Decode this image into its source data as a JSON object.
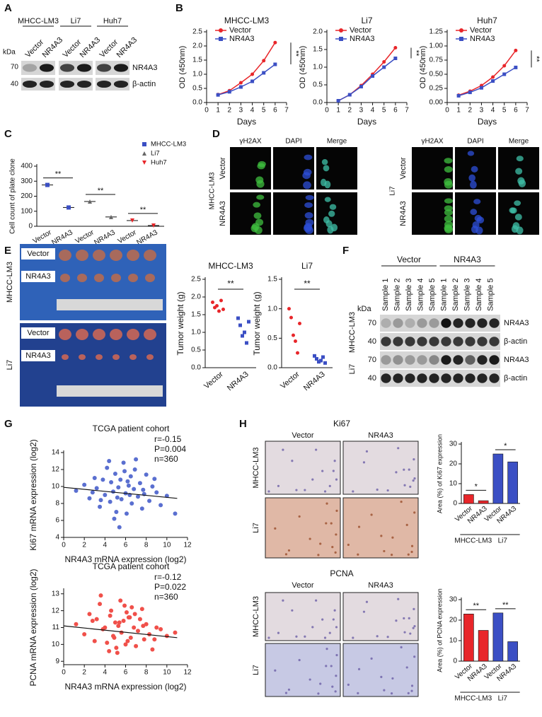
{
  "A": {
    "label": "A",
    "cell_lines": [
      "MHCC-LM3",
      "Li7",
      "Huh7"
    ],
    "lanes": [
      "Vector",
      "NR4A3"
    ],
    "unit": "kDa",
    "markers": [
      70,
      40
    ],
    "proteins": [
      "NR4A3",
      "β-actin"
    ]
  },
  "B": {
    "label": "B",
    "charts": [
      {
        "type": "line",
        "title": "MHCC-LM3",
        "x": [
          1,
          2,
          3,
          4,
          5,
          6
        ],
        "xlim": [
          0,
          7
        ],
        "xticks": [
          0,
          1,
          2,
          3,
          4,
          5,
          6,
          7
        ],
        "ylim": [
          0,
          2.5
        ],
        "yticks": [
          {
            "value": 0,
            "label": "0.0"
          },
          {
            "value": 0.5,
            "label": "0.5"
          },
          {
            "value": 1,
            "label": "1.0"
          },
          {
            "value": 1.5,
            "label": "1.5"
          },
          {
            "value": 2,
            "label": "2.0"
          },
          {
            "value": 2.5,
            "label": "2.5"
          }
        ],
        "xlabel": "Days",
        "ylabel": "OD (450nm)",
        "significance": "**",
        "series": [
          {
            "name": "Vector",
            "color": "#e8262a",
            "marker": "circle",
            "values": [
              0.28,
              0.42,
              0.7,
              1.0,
              1.48,
              2.12
            ]
          },
          {
            "name": "NR4A3",
            "color": "#3b4fc4",
            "marker": "square",
            "values": [
              0.27,
              0.38,
              0.55,
              0.75,
              1.05,
              1.35
            ]
          }
        ]
      },
      {
        "type": "line",
        "title": "Li7",
        "x": [
          1,
          2,
          3,
          4,
          5,
          6
        ],
        "xlim": [
          0,
          7
        ],
        "xticks": [
          0,
          1,
          2,
          3,
          4,
          5,
          6,
          7
        ],
        "ylim": [
          0,
          2
        ],
        "yticks": [
          {
            "value": 0,
            "label": "0.0"
          },
          {
            "value": 0.5,
            "label": "0.5"
          },
          {
            "value": 1,
            "label": "1.0"
          },
          {
            "value": 1.5,
            "label": "1.5"
          },
          {
            "value": 2,
            "label": "2.0"
          }
        ],
        "xlabel": "Days",
        "ylabel": "OD (450nm)",
        "significance": "**",
        "series": [
          {
            "name": "Vector",
            "color": "#e8262a",
            "marker": "circle",
            "values": [
              0.05,
              0.22,
              0.48,
              0.8,
              1.15,
              1.55
            ]
          },
          {
            "name": "NR4A3",
            "color": "#3b4fc4",
            "marker": "square",
            "values": [
              0.05,
              0.22,
              0.45,
              0.75,
              1.0,
              1.25
            ]
          }
        ]
      },
      {
        "type": "line",
        "title": "Huh7",
        "x": [
          1,
          2,
          3,
          4,
          5,
          6
        ],
        "xlim": [
          0,
          7
        ],
        "xticks": [
          0,
          1,
          2,
          3,
          4,
          5,
          6,
          7
        ],
        "ylim": [
          0,
          1.25
        ],
        "yticks": [
          {
            "value": 0,
            "label": "0.00"
          },
          {
            "value": 0.25,
            "label": "0.25"
          },
          {
            "value": 0.5,
            "label": "0.50"
          },
          {
            "value": 0.75,
            "label": "0.75"
          },
          {
            "value": 1,
            "label": "1.00"
          },
          {
            "value": 1.25,
            "label": "1.25"
          }
        ],
        "xlabel": "Days",
        "ylabel": "OD (450nm)",
        "significance": "**",
        "series": [
          {
            "name": "Vector",
            "color": "#e8262a",
            "marker": "circle",
            "values": [
              0.13,
              0.2,
              0.3,
              0.45,
              0.65,
              0.92
            ]
          },
          {
            "name": "NR4A3",
            "color": "#3b4fc4",
            "marker": "square",
            "values": [
              0.12,
              0.18,
              0.26,
              0.38,
              0.5,
              0.62
            ]
          }
        ]
      }
    ]
  },
  "C": {
    "label": "C",
    "type": "dot",
    "ylabel": "Cell count of plate clone",
    "ylim": [
      0,
      400
    ],
    "yticks": [
      0,
      100,
      200,
      300,
      400
    ],
    "categories": [
      "Vector",
      "NR4A3"
    ],
    "series": [
      {
        "name": "MHCC-LM3",
        "color": "#3b4fc4",
        "marker": "square",
        "values": [
          275,
          125
        ],
        "significance": "**"
      },
      {
        "name": "Li7",
        "color": "#666666",
        "marker": "triangle",
        "values": [
          165,
          62
        ],
        "significance": "**"
      },
      {
        "name": "Huh7",
        "color": "#e8262a",
        "marker": "triangle-down",
        "values": [
          38,
          5
        ],
        "significance": "**"
      }
    ]
  },
  "D": {
    "label": "D",
    "channels": [
      "γH2AX",
      "DAPI",
      "Merge"
    ],
    "channel_colors": [
      "#2ca02c",
      "#2a3fbf",
      "#2a3fbf"
    ],
    "rows": [
      "Vector",
      "NR4A3"
    ],
    "cell_lines": [
      "MHCC-LM3",
      "Li7"
    ]
  },
  "E": {
    "label": "E",
    "cell_lines": [
      "MHCC-LM3",
      "Li7"
    ],
    "groups": [
      "Vector",
      "NR4A3"
    ],
    "charts": [
      {
        "type": "dot",
        "title": "MHCC-LM3",
        "ylabel": "Tumor weight (g)",
        "ylim": [
          0,
          2.5
        ],
        "yticks": [
          {
            "value": 0,
            "label": "0.0"
          },
          {
            "value": 0.5,
            "label": "0.5"
          },
          {
            "value": 1,
            "label": "1.0"
          },
          {
            "value": 1.5,
            "label": "1.5"
          },
          {
            "value": 2,
            "label": "2.0"
          },
          {
            "value": 2.5,
            "label": "2.5"
          }
        ],
        "categories": [
          "Vector",
          "NR4A3"
        ],
        "significance": "**",
        "series": [
          {
            "color": "#e8262a",
            "marker": "circle",
            "values": [
              1.85,
              1.7,
              1.75,
              1.6,
              1.9,
              1.65
            ]
          },
          {
            "color": "#3b4fc4",
            "marker": "square",
            "values": [
              1.4,
              1.2,
              0.9,
              1.0,
              0.7,
              1.3
            ]
          }
        ]
      },
      {
        "type": "dot",
        "title": "Li7",
        "ylabel": "Tumor weight (g)",
        "ylim": [
          0,
          1.5
        ],
        "yticks": [
          {
            "value": 0,
            "label": "0.0"
          },
          {
            "value": 0.5,
            "label": "0.5"
          },
          {
            "value": 1,
            "label": "1.0"
          },
          {
            "value": 1.5,
            "label": "1.5"
          }
        ],
        "categories": [
          "Vector",
          "NR4A3"
        ],
        "significance": "**",
        "series": [
          {
            "color": "#e8262a",
            "marker": "circle",
            "values": [
              1.0,
              0.85,
              0.55,
              0.45,
              0.25,
              0.75
            ]
          },
          {
            "color": "#3b4fc4",
            "marker": "square",
            "values": [
              0.2,
              0.15,
              0.1,
              0.12,
              0.18,
              0.08
            ]
          }
        ]
      }
    ]
  },
  "F": {
    "label": "F",
    "groups": [
      "Vector",
      "NR4A3"
    ],
    "samples": [
      "Sample 1",
      "Sample 2",
      "Sample 3",
      "Sample 4",
      "Sample 5"
    ],
    "unit": "kDa",
    "markers": [
      70,
      40
    ],
    "cell_lines": [
      "MHCC-LM3",
      "Li7"
    ],
    "proteins": [
      "NR4A3",
      "β-actin"
    ]
  },
  "G": {
    "label": "G",
    "charts": [
      {
        "type": "scatter",
        "title": "TCGA patient cohort",
        "stats": [
          "r=-0.15",
          "P=0.004",
          "n=360"
        ],
        "xlabel": "NR4A3 mRNA expression (log2)",
        "ylabel": "Ki67 mRNA expression (log2)",
        "color": "#5a6fd0",
        "xlim": [
          0,
          12
        ],
        "xticks": [
          0,
          2,
          4,
          6,
          8,
          10,
          12
        ],
        "ylim": [
          4,
          14
        ],
        "yticks": [
          4,
          6,
          8,
          10,
          12,
          14
        ],
        "x": [
          1.2,
          2.0,
          2.5,
          3.0,
          3.2,
          3.5,
          3.8,
          4.0,
          4.2,
          4.5,
          4.6,
          4.8,
          5.0,
          5.1,
          5.3,
          5.5,
          5.6,
          5.8,
          6.0,
          6.1,
          6.3,
          6.5,
          6.6,
          6.8,
          7.0,
          7.2,
          7.4,
          7.6,
          7.8,
          8.0,
          8.3,
          8.6,
          9.0,
          9.4,
          10.0,
          10.8,
          3.6,
          4.4,
          5.4,
          6.2,
          6.9,
          5.9,
          4.9,
          7.7,
          2.8,
          8.8,
          5.2,
          6.4
        ],
        "y": [
          9.5,
          10.2,
          8.6,
          11.0,
          9.8,
          7.6,
          10.8,
          9.0,
          12.2,
          8.2,
          10.5,
          9.4,
          11.5,
          7.0,
          9.9,
          10.8,
          8.5,
          12.8,
          9.2,
          6.8,
          10.1,
          11.2,
          8.0,
          9.7,
          13.2,
          8.8,
          10.4,
          7.4,
          9.1,
          11.4,
          8.3,
          10.0,
          9.3,
          7.8,
          8.9,
          6.8,
          8.4,
          13.0,
          5.2,
          10.6,
          12.0,
          11.8,
          6.2,
          9.6,
          9.3,
          10.9,
          8.7,
          9.0
        ],
        "fit": {
          "x": [
            0,
            11
          ],
          "y": [
            9.9,
            8.6
          ]
        }
      },
      {
        "type": "scatter",
        "title": "TCGA patient cohort",
        "stats": [
          "r=-0.12",
          "P=0.022",
          "n=360"
        ],
        "xlabel": "NR4A3 mRNA expression (log2)",
        "ylabel": "PCNA mRNA expression (log2)",
        "color": "#f0504a",
        "xlim": [
          0,
          12
        ],
        "xticks": [
          0,
          2,
          4,
          6,
          8,
          10,
          12
        ],
        "ylim": [
          8.8,
          13.2
        ],
        "yticks": [
          9,
          10,
          11,
          12,
          13
        ],
        "x": [
          1.2,
          2.0,
          2.5,
          3.0,
          3.2,
          3.5,
          3.8,
          4.0,
          4.2,
          4.5,
          4.6,
          4.8,
          5.0,
          5.1,
          5.3,
          5.5,
          5.6,
          5.8,
          6.0,
          6.1,
          6.3,
          6.5,
          6.6,
          6.8,
          7.0,
          7.2,
          7.4,
          7.6,
          7.8,
          8.0,
          8.3,
          8.6,
          9.0,
          9.4,
          10.0,
          10.8,
          3.6,
          4.4,
          5.4,
          6.2,
          6.9,
          5.9,
          4.9,
          7.7,
          2.8,
          8.8,
          5.2,
          6.4
        ],
        "y": [
          11.2,
          10.6,
          11.8,
          10.2,
          11.5,
          12.4,
          10.9,
          11.0,
          10.1,
          11.7,
          12.0,
          10.5,
          11.3,
          9.8,
          11.1,
          12.6,
          10.7,
          11.4,
          10.0,
          11.9,
          11.6,
          10.4,
          12.2,
          11.0,
          9.9,
          10.8,
          11.5,
          12.1,
          10.3,
          11.2,
          10.6,
          9.7,
          11.0,
          10.9,
          10.5,
          10.7,
          12.9,
          9.6,
          11.3,
          10.2,
          11.8,
          12.3,
          10.4,
          11.1,
          11.4,
          10.3,
          9.5,
          11.6
        ],
        "fit": {
          "x": [
            0,
            11
          ],
          "y": [
            11.1,
            10.4
          ]
        }
      }
    ]
  },
  "H": {
    "label": "H",
    "panels": [
      {
        "title": "Ki67",
        "columns": [
          "Vector",
          "NR4A3"
        ],
        "rows": [
          "MHCC-LM3",
          "Li7"
        ],
        "chart": {
          "type": "bar",
          "ylabel": "Area (%) of Ki67 expression",
          "ylim": [
            0,
            30
          ],
          "yticks": [
            0,
            10,
            20,
            30
          ],
          "groups": [
            {
              "name": "MHCC-LM3",
              "color": "#e8262a",
              "categories": [
                "Vector",
                "NR4A3"
              ],
              "values": [
                4.5,
                1.4
              ],
              "significance": "*"
            },
            {
              "name": "Li7",
              "color": "#3b4fc4",
              "categories": [
                "Vector",
                "NR4A3"
              ],
              "values": [
                25,
                21
              ],
              "significance": "*"
            }
          ]
        }
      },
      {
        "title": "PCNA",
        "columns": [
          "Vector",
          "NR4A3"
        ],
        "rows": [
          "MHCC-LM3",
          "Li7"
        ],
        "chart": {
          "type": "bar",
          "ylabel": "Area (%) of PCNA expression",
          "ylim": [
            0,
            30
          ],
          "yticks": [
            0,
            10,
            20,
            30
          ],
          "groups": [
            {
              "name": "MHCC-LM3",
              "color": "#e8262a",
              "categories": [
                "Vector",
                "NR4A3"
              ],
              "values": [
                23,
                15
              ],
              "significance": "**"
            },
            {
              "name": "Li7",
              "color": "#3b4fc4",
              "categories": [
                "Vector",
                "NR4A3"
              ],
              "values": [
                23.5,
                9.5
              ],
              "significance": "**"
            }
          ]
        }
      }
    ]
  }
}
